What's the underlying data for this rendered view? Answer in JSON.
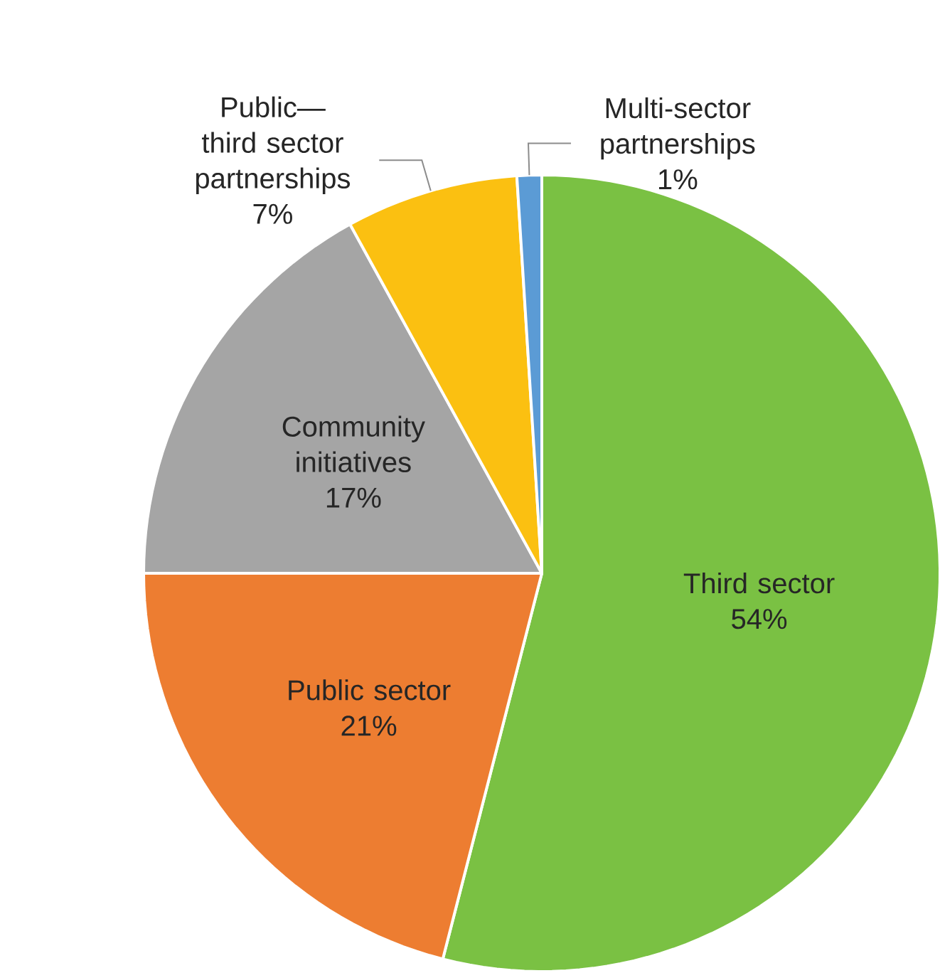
{
  "chart_data": {
    "type": "pie",
    "categories": [
      "Third sector",
      "Public sector",
      "Community initiatives",
      "Public—third sector partnerships",
      "Multi-sector partnerships"
    ],
    "values": [
      54,
      21,
      17,
      7,
      1
    ],
    "value_labels": [
      "54%",
      "21%",
      "17%",
      "7%",
      "1%"
    ],
    "colors": [
      "#7ac143",
      "#ed7d31",
      "#a5a5a5",
      "#fbc011",
      "#5b9bd5"
    ]
  }
}
